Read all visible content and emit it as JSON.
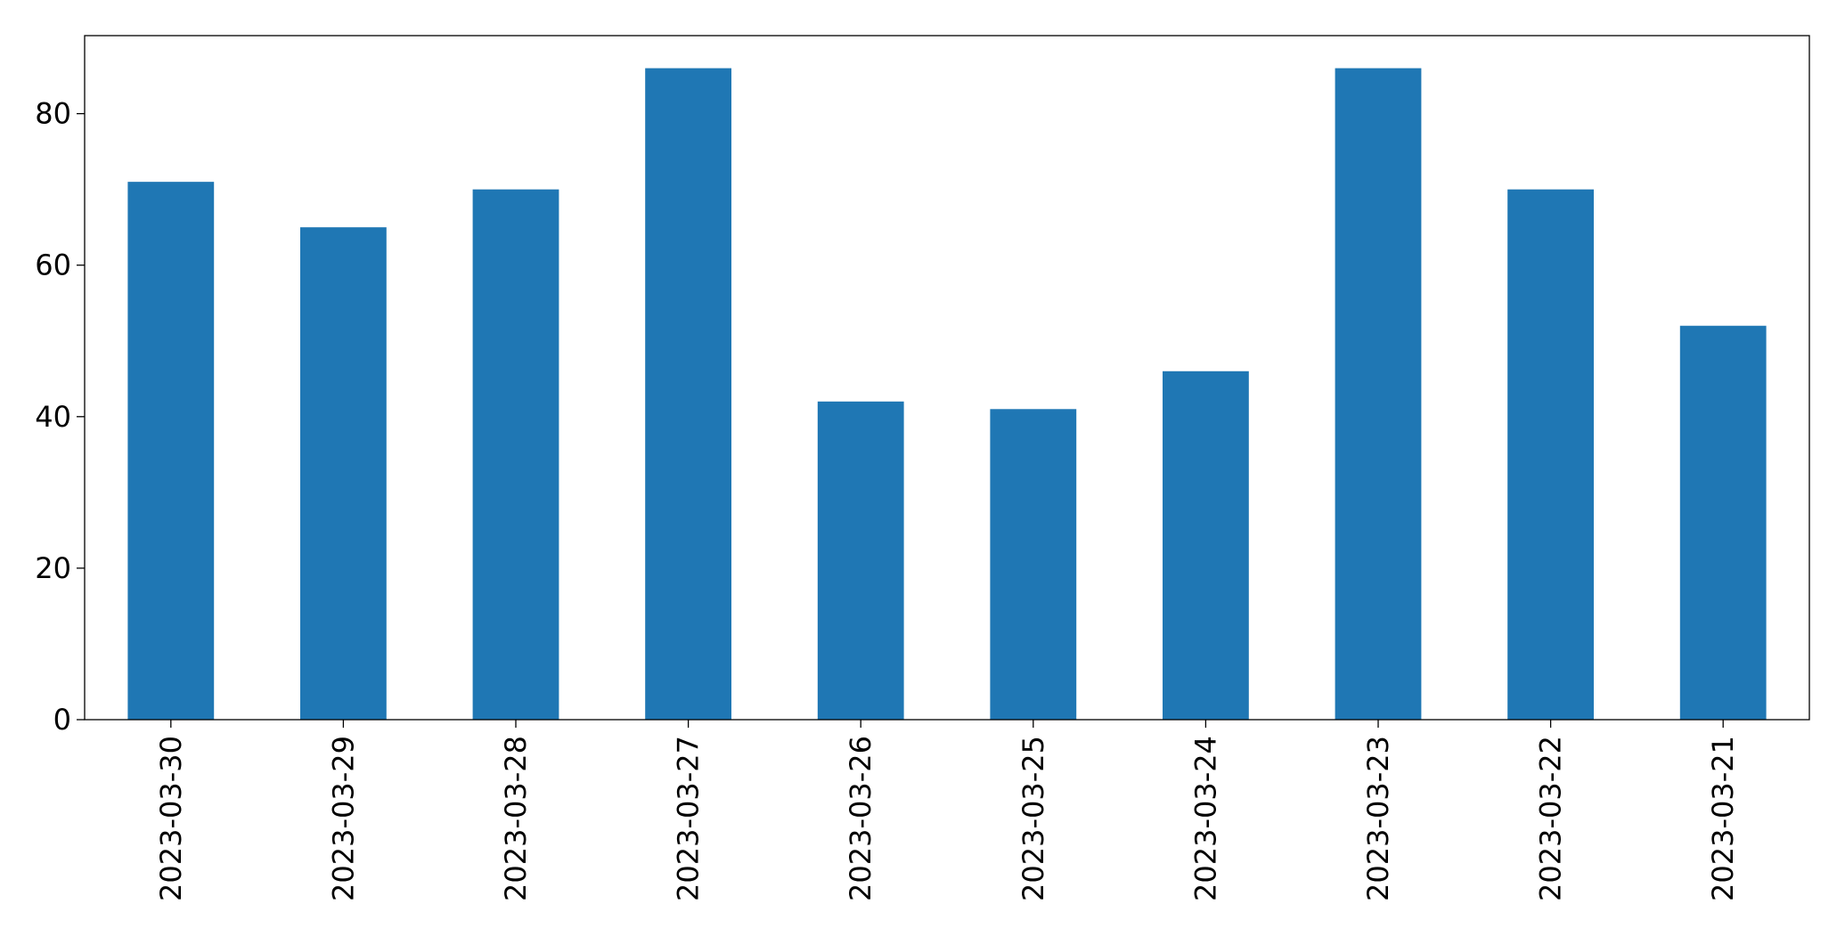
{
  "chart_data": {
    "type": "bar",
    "categories": [
      "2023-03-30",
      "2023-03-29",
      "2023-03-28",
      "2023-03-27",
      "2023-03-26",
      "2023-03-25",
      "2023-03-24",
      "2023-03-23",
      "2023-03-22",
      "2023-03-21"
    ],
    "values": [
      71,
      65,
      70,
      86,
      42,
      41,
      46,
      86,
      70,
      52
    ],
    "color": "#1f77b4",
    "ylim": [
      0,
      90.3
    ],
    "yticks": [
      0,
      20,
      40,
      60,
      80
    ],
    "grid": false
  }
}
